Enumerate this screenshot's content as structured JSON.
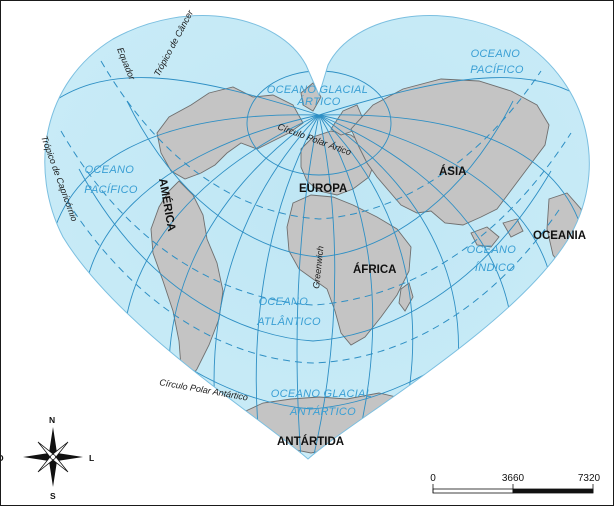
{
  "colors": {
    "ocean": "#bfe6f4",
    "ocean_edge": "#e6f6fc",
    "land": "#c4c4c4",
    "coast": "#6f6f6f",
    "graticule": "#2e8fc4",
    "ocean_text": "#3a9fd4"
  },
  "oceans": {
    "glacial_artico": [
      "OCEANO GLACIAL",
      "ÁRTICO"
    ],
    "pacifico_ne": [
      "OCEANO",
      "PACÍFICO"
    ],
    "pacifico_w": [
      "OCEANO",
      "PACÍFICO"
    ],
    "atlantico": [
      "OCEANO",
      "ATLÂNTICO"
    ],
    "indico": [
      "OCEANO",
      "ÍNDICO"
    ],
    "glacial_antartico": [
      "OCEANO GLACIAL",
      "ANTÁRTICO"
    ]
  },
  "continents": {
    "america": "AMÉRICA",
    "europa": "EUROPA",
    "asia": "ÁSIA",
    "africa": "ÁFRICA",
    "oceania": "OCEANIA",
    "antartida": "ANTÁRTIDA"
  },
  "lines": {
    "equador": "Equador",
    "cancer": "Trópico de Câncer",
    "capricornio": "Trópico de Capricórnio",
    "polar_artico": "Círculo Polar Ártico",
    "polar_antartico": "Círculo Polar Antártico",
    "greenwich": "Greenwich"
  },
  "compass": {
    "n": "N",
    "s": "S",
    "l": "L",
    "o": "O",
    "icon": "compass-rose-icon"
  },
  "scale": {
    "ticks": [
      "0",
      "3660",
      "7320"
    ]
  }
}
